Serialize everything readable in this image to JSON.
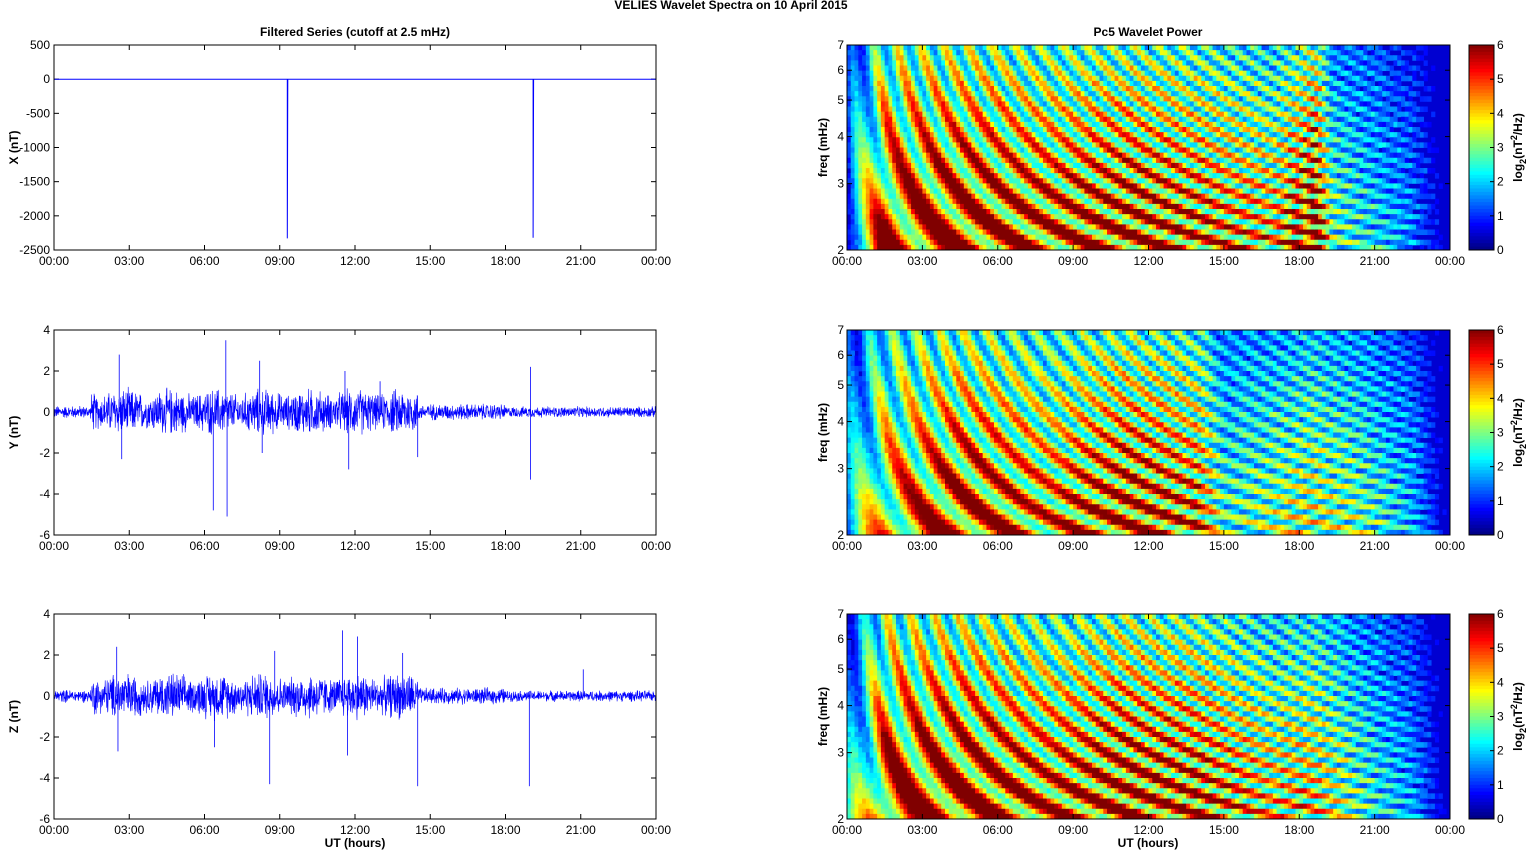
{
  "figure_title": "VELIES Wavelet Spectra on 10 April     2015",
  "left_title": "Filtered Series (cutoff at 2.5 mHz)",
  "right_title": "Pc5 Wavelet Power",
  "xlabel": "UT (hours)",
  "freq_label": "freq (mHz)",
  "colorbar_label": "log2(nT2/Hz)",
  "colormap": "jet",
  "colors": {
    "trace": "#0000ff",
    "zero_line": "#000000"
  },
  "chart_data": [
    {
      "type": "line",
      "ylabel": "X (nT)",
      "xlim": [
        0,
        24
      ],
      "ylim": [
        -2500,
        500
      ],
      "x_tick_labels": [
        "00:00",
        "03:00",
        "06:00",
        "09:00",
        "12:00",
        "15:00",
        "18:00",
        "21:00",
        "00:00"
      ],
      "y_ticks": [
        500,
        0,
        -500,
        -1000,
        -1500,
        -2000,
        -2500
      ],
      "series": [
        {
          "values_description_points": [
            [
              0,
              0
            ],
            [
              9.3,
              0
            ],
            [
              9.3,
              -2330
            ],
            [
              9.32,
              0
            ],
            [
              19.1,
              0
            ],
            [
              19.1,
              -2320
            ],
            [
              19.12,
              0
            ],
            [
              24,
              0
            ]
          ]
        }
      ]
    },
    {
      "type": "line",
      "ylabel": "Y (nT)",
      "xlim": [
        0,
        24
      ],
      "ylim": [
        -6,
        4
      ],
      "x_tick_labels": [
        "00:00",
        "03:00",
        "06:00",
        "09:00",
        "12:00",
        "15:00",
        "18:00",
        "21:00",
        "00:00"
      ],
      "y_ticks": [
        4,
        2,
        0,
        -2,
        -4,
        -6
      ],
      "series": [
        {
          "spikes": [
            [
              2.6,
              2.8
            ],
            [
              2.7,
              -2.3
            ],
            [
              6.35,
              -4.8
            ],
            [
              6.85,
              3.5
            ],
            [
              6.9,
              -5.1
            ],
            [
              8.2,
              2.5
            ],
            [
              8.3,
              -2.0
            ],
            [
              11.6,
              2.0
            ],
            [
              11.75,
              -2.8
            ],
            [
              13.0,
              1.5
            ],
            [
              14.5,
              -2.2
            ],
            [
              19.0,
              2.2
            ],
            [
              19.0,
              -3.3
            ]
          ]
        }
      ]
    },
    {
      "type": "line",
      "ylabel": "Z (nT)",
      "xlim": [
        0,
        24
      ],
      "ylim": [
        -6,
        4
      ],
      "x_tick_labels": [
        "00:00",
        "03:00",
        "06:00",
        "09:00",
        "12:00",
        "15:00",
        "18:00",
        "21:00",
        "00:00"
      ],
      "y_ticks": [
        4,
        2,
        0,
        -2,
        -4,
        -6
      ],
      "series": [
        {
          "spikes": [
            [
              2.5,
              2.4
            ],
            [
              2.55,
              -2.7
            ],
            [
              6.4,
              -2.5
            ],
            [
              8.6,
              -4.3
            ],
            [
              8.8,
              2.2
            ],
            [
              11.5,
              3.2
            ],
            [
              11.7,
              -2.9
            ],
            [
              12.1,
              2.9
            ],
            [
              13.9,
              2.1
            ],
            [
              14.5,
              -4.4
            ],
            [
              18.95,
              -4.4
            ],
            [
              21.1,
              1.3
            ]
          ]
        }
      ]
    },
    {
      "type": "heatmap",
      "ylabel": "freq (mHz)",
      "xlim": [
        0,
        24
      ],
      "ylim": [
        2,
        7
      ],
      "y_scale": "log",
      "y_ticks": [
        2,
        3,
        4,
        5,
        6,
        7
      ],
      "x_tick_labels": [
        "00:00",
        "03:00",
        "06:00",
        "09:00",
        "12:00",
        "15:00",
        "18:00",
        "21:00",
        "00:00"
      ],
      "colorbar_ticks": [
        6,
        5,
        4,
        3,
        2,
        1,
        0
      ],
      "colorbar_range": [
        0,
        6
      ],
      "activity_envelope": [
        [
          0,
          1.5
        ],
        [
          1.5,
          5.5
        ],
        [
          4.5,
          5.8
        ],
        [
          8,
          5.2
        ],
        [
          11,
          5.5
        ],
        [
          14,
          5.0
        ],
        [
          17,
          4.2
        ],
        [
          18.7,
          6.0
        ],
        [
          19.3,
          3.0
        ],
        [
          21,
          2.3
        ],
        [
          22.5,
          1.6
        ],
        [
          24,
          0.2
        ]
      ]
    },
    {
      "type": "heatmap",
      "ylabel": "freq (mHz)",
      "xlim": [
        0,
        24
      ],
      "ylim": [
        2,
        7
      ],
      "y_scale": "log",
      "y_ticks": [
        2,
        3,
        4,
        5,
        6,
        7
      ],
      "x_tick_labels": [
        "00:00",
        "03:00",
        "06:00",
        "09:00",
        "12:00",
        "15:00",
        "18:00",
        "21:00",
        "00:00"
      ],
      "colorbar_ticks": [
        6,
        5,
        4,
        3,
        2,
        1,
        0
      ],
      "colorbar_range": [
        0,
        6
      ],
      "activity_envelope": [
        [
          0,
          1.8
        ],
        [
          1.5,
          4.5
        ],
        [
          4.5,
          5.6
        ],
        [
          8,
          4.6
        ],
        [
          11,
          5.5
        ],
        [
          14,
          4.8
        ],
        [
          15,
          2.8
        ],
        [
          18.5,
          3.6
        ],
        [
          20.5,
          3.0
        ],
        [
          22.5,
          2.0
        ],
        [
          24,
          0.2
        ]
      ]
    },
    {
      "type": "heatmap",
      "ylabel": "freq (mHz)",
      "xlim": [
        0,
        24
      ],
      "ylim": [
        2,
        7
      ],
      "y_scale": "log",
      "y_ticks": [
        2,
        3,
        4,
        5,
        6,
        7
      ],
      "x_tick_labels": [
        "00:00",
        "03:00",
        "06:00",
        "09:00",
        "12:00",
        "15:00",
        "18:00",
        "21:00",
        "00:00"
      ],
      "colorbar_ticks": [
        6,
        5,
        4,
        3,
        2,
        1,
        0
      ],
      "colorbar_range": [
        0,
        6
      ],
      "activity_envelope": [
        [
          0,
          1.8
        ],
        [
          1.5,
          5.5
        ],
        [
          4.5,
          5.8
        ],
        [
          8,
          5.0
        ],
        [
          11,
          5.6
        ],
        [
          14,
          5.2
        ],
        [
          17,
          4.0
        ],
        [
          18.5,
          4.2
        ],
        [
          20.5,
          2.8
        ],
        [
          22.5,
          1.8
        ],
        [
          24,
          0.2
        ]
      ]
    }
  ]
}
